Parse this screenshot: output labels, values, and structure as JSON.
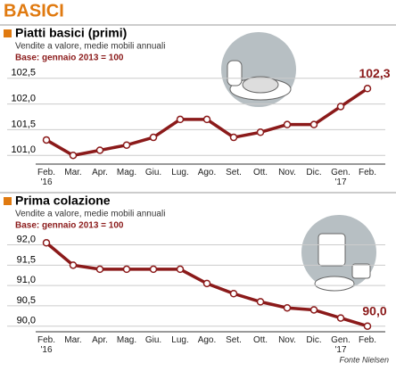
{
  "title": "BASICI",
  "source": "Fonte Nielsen",
  "chart_data": [
    {
      "type": "line",
      "title": "Piatti basici (primi)",
      "subtitle": "Vendite a valore, medie mobili annuali",
      "note": "Base: gennaio 2013 = 100",
      "categories": [
        "Feb.\n'16",
        "Mar.",
        "Apr.",
        "Mag.",
        "Giu.",
        "Lug.",
        "Ago.",
        "Set.",
        "Ott.",
        "Nov.",
        "Dic.",
        "Gen.\n'17",
        "Feb."
      ],
      "series": [
        {
          "color": "#8b1a1a",
          "values": [
            101.3,
            101.0,
            101.1,
            101.2,
            101.35,
            101.7,
            101.7,
            101.35,
            101.45,
            101.6,
            101.6,
            101.95,
            102.3
          ],
          "value_labels": [
            null,
            null,
            null,
            null,
            null,
            null,
            null,
            null,
            null,
            null,
            null,
            null,
            "102,3"
          ]
        }
      ],
      "ylim": [
        100.9,
        102.6
      ],
      "yticks": [
        {
          "value": 101,
          "label": "101,0"
        },
        {
          "value": 101.5,
          "label": "101,5"
        },
        {
          "value": 102,
          "label": "102,0"
        },
        {
          "value": 102.5,
          "label": "102,5"
        }
      ],
      "grid": true
    },
    {
      "type": "line",
      "title": "Prima colazione",
      "subtitle": "Vendite a valore, medie mobili annuali",
      "note": "Base: gennaio 2013 = 100",
      "categories": [
        "Feb.\n'16",
        "Mar.",
        "Apr.",
        "Mag.",
        "Giu.",
        "Lug.",
        "Ago.",
        "Set.",
        "Ott.",
        "Nov.",
        "Dic.",
        "Gen.\n'17",
        "Feb."
      ],
      "series": [
        {
          "color": "#8b1a1a",
          "values": [
            92.05,
            91.5,
            91.4,
            91.4,
            91.4,
            91.4,
            91.05,
            90.8,
            90.6,
            90.45,
            90.4,
            90.2,
            90.0
          ],
          "value_labels": [
            null,
            null,
            null,
            null,
            null,
            null,
            null,
            null,
            null,
            null,
            null,
            null,
            "90,0"
          ]
        }
      ],
      "ylim": [
        89.95,
        92.1
      ],
      "yticks": [
        {
          "value": 90,
          "label": "90,0"
        },
        {
          "value": 90.5,
          "label": "90,5"
        },
        {
          "value": 91,
          "label": "91,0"
        },
        {
          "value": 91.5,
          "label": "91,5"
        },
        {
          "value": 92,
          "label": "92,0"
        }
      ],
      "grid": true
    }
  ]
}
